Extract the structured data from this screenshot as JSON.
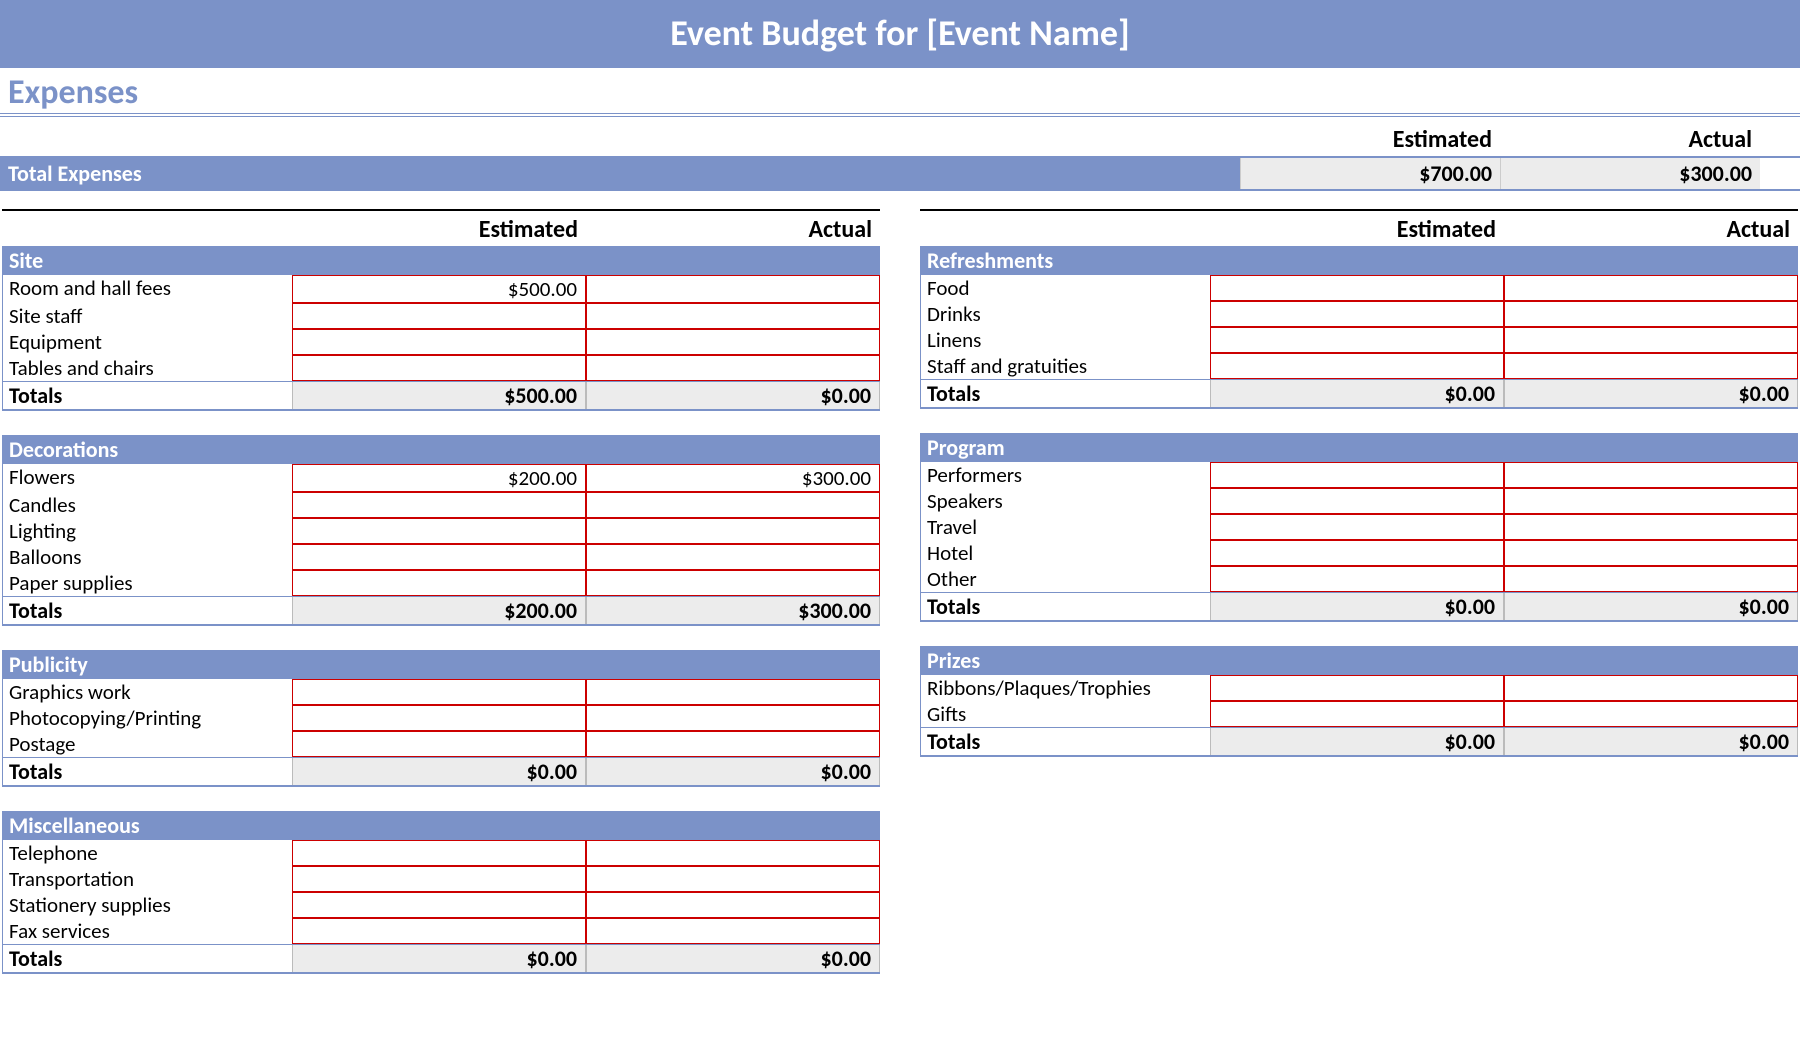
{
  "title": "Event Budget for [Event Name]",
  "section": "Expenses",
  "headers": {
    "estimated": "Estimated",
    "actual": "Actual"
  },
  "totals_label": "Total Expenses",
  "totals": {
    "estimated": "$700.00",
    "actual": "$300.00"
  },
  "groups_left": [
    {
      "name": "Site",
      "show_header": true,
      "items": [
        {
          "label": "Room and hall fees",
          "estimated": "$500.00",
          "actual": ""
        },
        {
          "label": "Site staff",
          "estimated": "",
          "actual": ""
        },
        {
          "label": "Equipment",
          "estimated": "",
          "actual": ""
        },
        {
          "label": "Tables and chairs",
          "estimated": "",
          "actual": ""
        }
      ],
      "totals": {
        "label": "Totals",
        "estimated": "$500.00",
        "actual": "$0.00"
      }
    },
    {
      "name": "Decorations",
      "show_header": false,
      "items": [
        {
          "label": "Flowers",
          "estimated": "$200.00",
          "actual": "$300.00"
        },
        {
          "label": "Candles",
          "estimated": "",
          "actual": ""
        },
        {
          "label": "Lighting",
          "estimated": "",
          "actual": ""
        },
        {
          "label": "Balloons",
          "estimated": "",
          "actual": ""
        },
        {
          "label": "Paper supplies",
          "estimated": "",
          "actual": ""
        }
      ],
      "totals": {
        "label": "Totals",
        "estimated": "$200.00",
        "actual": "$300.00"
      }
    },
    {
      "name": "Publicity",
      "show_header": false,
      "items": [
        {
          "label": "Graphics work",
          "estimated": "",
          "actual": ""
        },
        {
          "label": "Photocopying/Printing",
          "estimated": "",
          "actual": ""
        },
        {
          "label": "Postage",
          "estimated": "",
          "actual": ""
        }
      ],
      "totals": {
        "label": "Totals",
        "estimated": "$0.00",
        "actual": "$0.00"
      }
    },
    {
      "name": "Miscellaneous",
      "show_header": false,
      "items": [
        {
          "label": "Telephone",
          "estimated": "",
          "actual": ""
        },
        {
          "label": "Transportation",
          "estimated": "",
          "actual": ""
        },
        {
          "label": "Stationery supplies",
          "estimated": "",
          "actual": ""
        },
        {
          "label": "Fax services",
          "estimated": "",
          "actual": ""
        }
      ],
      "totals": {
        "label": "Totals",
        "estimated": "$0.00",
        "actual": "$0.00"
      }
    }
  ],
  "groups_right": [
    {
      "name": "Refreshments",
      "show_header": true,
      "items": [
        {
          "label": "Food",
          "estimated": "",
          "actual": ""
        },
        {
          "label": "Drinks",
          "estimated": "",
          "actual": ""
        },
        {
          "label": "Linens",
          "estimated": "",
          "actual": ""
        },
        {
          "label": "Staff and gratuities",
          "estimated": "",
          "actual": ""
        }
      ],
      "totals": {
        "label": "Totals",
        "estimated": "$0.00",
        "actual": "$0.00"
      }
    },
    {
      "name": "Program",
      "show_header": false,
      "items": [
        {
          "label": "Performers",
          "estimated": "",
          "actual": ""
        },
        {
          "label": "Speakers",
          "estimated": "",
          "actual": ""
        },
        {
          "label": "Travel",
          "estimated": "",
          "actual": ""
        },
        {
          "label": "Hotel",
          "estimated": "",
          "actual": ""
        },
        {
          "label": "Other",
          "estimated": "",
          "actual": ""
        }
      ],
      "totals": {
        "label": "Totals",
        "estimated": "$0.00",
        "actual": "$0.00"
      }
    },
    {
      "name": "Prizes",
      "show_header": false,
      "items": [
        {
          "label": "Ribbons/Plaques/Trophies",
          "estimated": "",
          "actual": ""
        },
        {
          "label": "Gifts",
          "estimated": "",
          "actual": ""
        }
      ],
      "totals": {
        "label": "Totals",
        "estimated": "$0.00",
        "actual": "$0.00"
      }
    }
  ]
}
